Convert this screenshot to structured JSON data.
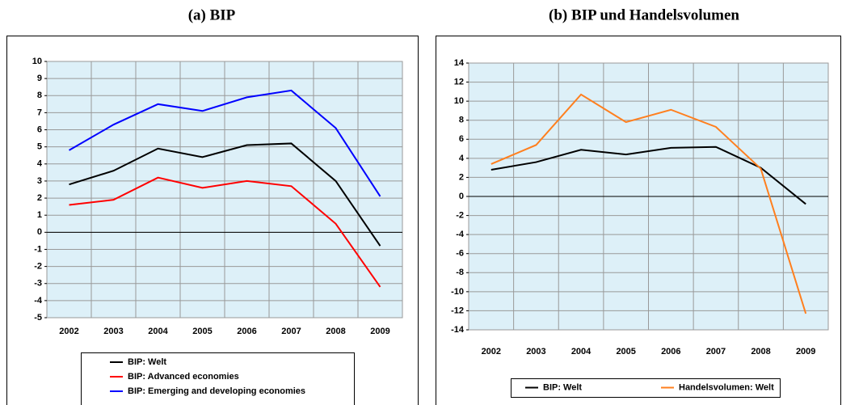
{
  "chart_data": [
    {
      "type": "line",
      "title": "(a) BIP",
      "categories": [
        "2002",
        "2003",
        "2004",
        "2005",
        "2006",
        "2007",
        "2008",
        "2009"
      ],
      "series": [
        {
          "name": "BIP: Welt",
          "color": "#000000",
          "values": [
            2.8,
            3.6,
            4.9,
            4.4,
            5.1,
            5.2,
            3.0,
            -0.8
          ]
        },
        {
          "name": "BIP: Advanced economies",
          "color": "#ff0000",
          "values": [
            1.6,
            1.9,
            3.2,
            2.6,
            3.0,
            2.7,
            0.5,
            -3.2
          ]
        },
        {
          "name": "BIP: Emerging and developing economies",
          "color": "#0000ff",
          "values": [
            4.8,
            6.3,
            7.5,
            7.1,
            7.9,
            8.3,
            6.1,
            2.1
          ]
        }
      ],
      "ylim": [
        -5,
        10
      ],
      "yticks": [
        -5,
        -4,
        -3,
        -2,
        -1,
        0,
        1,
        2,
        3,
        4,
        5,
        6,
        7,
        8,
        9,
        10
      ],
      "grid": true,
      "legend": "bottom"
    },
    {
      "type": "line",
      "title": "(b) BIP und Handelsvolumen",
      "categories": [
        "2002",
        "2003",
        "2004",
        "2005",
        "2006",
        "2007",
        "2008",
        "2009"
      ],
      "series": [
        {
          "name": "BIP: Welt",
          "color": "#000000",
          "values": [
            2.8,
            3.6,
            4.9,
            4.4,
            5.1,
            5.2,
            3.0,
            -0.8
          ]
        },
        {
          "name": "Handelsvolumen: Welt",
          "color": "#ff7f1e",
          "values": [
            3.4,
            5.4,
            10.7,
            7.8,
            9.1,
            7.3,
            2.9,
            -12.3
          ]
        }
      ],
      "ylim": [
        -14,
        14
      ],
      "yticks": [
        -14,
        -12,
        -10,
        -8,
        -6,
        -4,
        -2,
        0,
        2,
        4,
        6,
        8,
        10,
        12,
        14
      ],
      "grid": true,
      "legend": "bottom"
    }
  ]
}
